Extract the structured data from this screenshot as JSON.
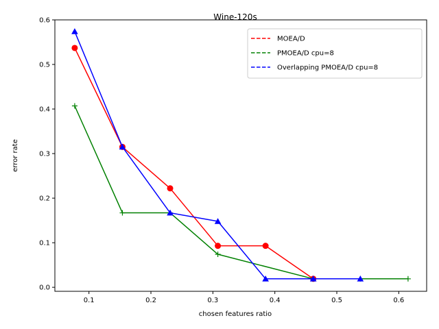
{
  "chart_data": {
    "type": "line",
    "title": "Wine-120s",
    "xlabel": "chosen features ratio",
    "ylabel": "error rate",
    "xlim": [
      0.045,
      0.645
    ],
    "ylim": [
      -0.009,
      0.6
    ],
    "xticks": [
      0.1,
      0.2,
      0.3,
      0.4,
      0.5,
      0.6
    ],
    "xtick_labels": [
      "0.1",
      "0.2",
      "0.3",
      "0.4",
      "0.5",
      "0.6"
    ],
    "yticks": [
      0.0,
      0.1,
      0.2,
      0.3,
      0.4,
      0.5,
      0.6
    ],
    "ytick_labels": [
      "0.0",
      "0.1",
      "0.2",
      "0.3",
      "0.4",
      "0.5",
      "0.6"
    ],
    "grid": false,
    "legend_position": "top-right",
    "series": [
      {
        "name": "MOEA/D",
        "color": "#ff0000",
        "marker": "circle",
        "points": [
          [
            0.077,
            0.537
          ],
          [
            0.154,
            0.315
          ],
          [
            0.231,
            0.222
          ],
          [
            0.308,
            0.093
          ],
          [
            0.385,
            0.093
          ],
          [
            0.462,
            0.019
          ]
        ]
      },
      {
        "name": "PMOEA/D cpu=8",
        "color": "#008000",
        "marker": "plus",
        "points": [
          [
            0.077,
            0.407
          ],
          [
            0.154,
            0.167
          ],
          [
            0.231,
            0.167
          ],
          [
            0.308,
            0.074
          ],
          [
            0.462,
            0.019
          ],
          [
            0.538,
            0.019
          ],
          [
            0.615,
            0.019
          ]
        ]
      },
      {
        "name": "Overlapping PMOEA/D cpu=8",
        "color": "#0000ff",
        "marker": "triangle",
        "points": [
          [
            0.077,
            0.574
          ],
          [
            0.154,
            0.315
          ],
          [
            0.231,
            0.167
          ],
          [
            0.308,
            0.148
          ],
          [
            0.385,
            0.019
          ],
          [
            0.462,
            0.019
          ],
          [
            0.538,
            0.019
          ]
        ]
      }
    ]
  }
}
